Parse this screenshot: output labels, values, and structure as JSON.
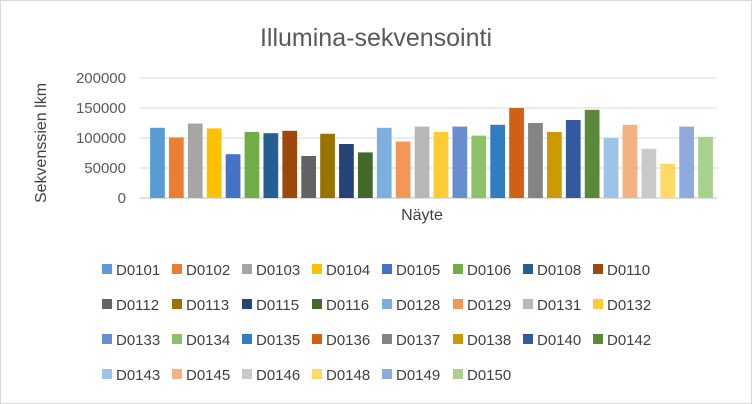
{
  "chart_data": {
    "type": "bar",
    "title": "Illumina-sekvensointi",
    "xlabel": "Näyte",
    "ylabel": "Sekvenssien lkm",
    "ylim": [
      0,
      200000
    ],
    "yticks": [
      "200000",
      "150000",
      "100000",
      "50000",
      "0"
    ],
    "grid": true,
    "legend_position": "bottom",
    "series": [
      {
        "name": "D0101",
        "value": 117000,
        "color": "#5b9bd5"
      },
      {
        "name": "D0102",
        "value": 101000,
        "color": "#ed7d31"
      },
      {
        "name": "D0103",
        "value": 124000,
        "color": "#a5a5a5"
      },
      {
        "name": "D0104",
        "value": 116000,
        "color": "#ffc000"
      },
      {
        "name": "D0105",
        "value": 73000,
        "color": "#4472c4"
      },
      {
        "name": "D0106",
        "value": 110000,
        "color": "#70ad47"
      },
      {
        "name": "D0108",
        "value": 108000,
        "color": "#255e91"
      },
      {
        "name": "D0110",
        "value": 112000,
        "color": "#9e480e"
      },
      {
        "name": "D0112",
        "value": 70000,
        "color": "#636363"
      },
      {
        "name": "D0113",
        "value": 107000,
        "color": "#997300"
      },
      {
        "name": "D0115",
        "value": 90000,
        "color": "#264478"
      },
      {
        "name": "D0116",
        "value": 76000,
        "color": "#43682b"
      },
      {
        "name": "D0128",
        "value": 117000,
        "color": "#7cafdd"
      },
      {
        "name": "D0129",
        "value": 94000,
        "color": "#f1975a"
      },
      {
        "name": "D0131",
        "value": 119000,
        "color": "#b7b7b7"
      },
      {
        "name": "D0132",
        "value": 110000,
        "color": "#ffcd33"
      },
      {
        "name": "D0133",
        "value": 119000,
        "color": "#698ed0"
      },
      {
        "name": "D0134",
        "value": 104000,
        "color": "#8cc168"
      },
      {
        "name": "D0135",
        "value": 122000,
        "color": "#327dc2"
      },
      {
        "name": "D0136",
        "value": 150000,
        "color": "#d26012"
      },
      {
        "name": "D0137",
        "value": 125000,
        "color": "#848484"
      },
      {
        "name": "D0138",
        "value": 110000,
        "color": "#cc9a00"
      },
      {
        "name": "D0140",
        "value": 130000,
        "color": "#335aa1"
      },
      {
        "name": "D0142",
        "value": 147000,
        "color": "#5a8a39"
      },
      {
        "name": "D0143",
        "value": 100000,
        "color": "#9dc3e6"
      },
      {
        "name": "D0145",
        "value": 122000,
        "color": "#f4b183"
      },
      {
        "name": "D0146",
        "value": 82000,
        "color": "#c9c9c9"
      },
      {
        "name": "D0148",
        "value": 57000,
        "color": "#ffd966"
      },
      {
        "name": "D0149",
        "value": 119000,
        "color": "#8faadc"
      },
      {
        "name": "D0150",
        "value": 102000,
        "color": "#a9d18e"
      }
    ]
  }
}
